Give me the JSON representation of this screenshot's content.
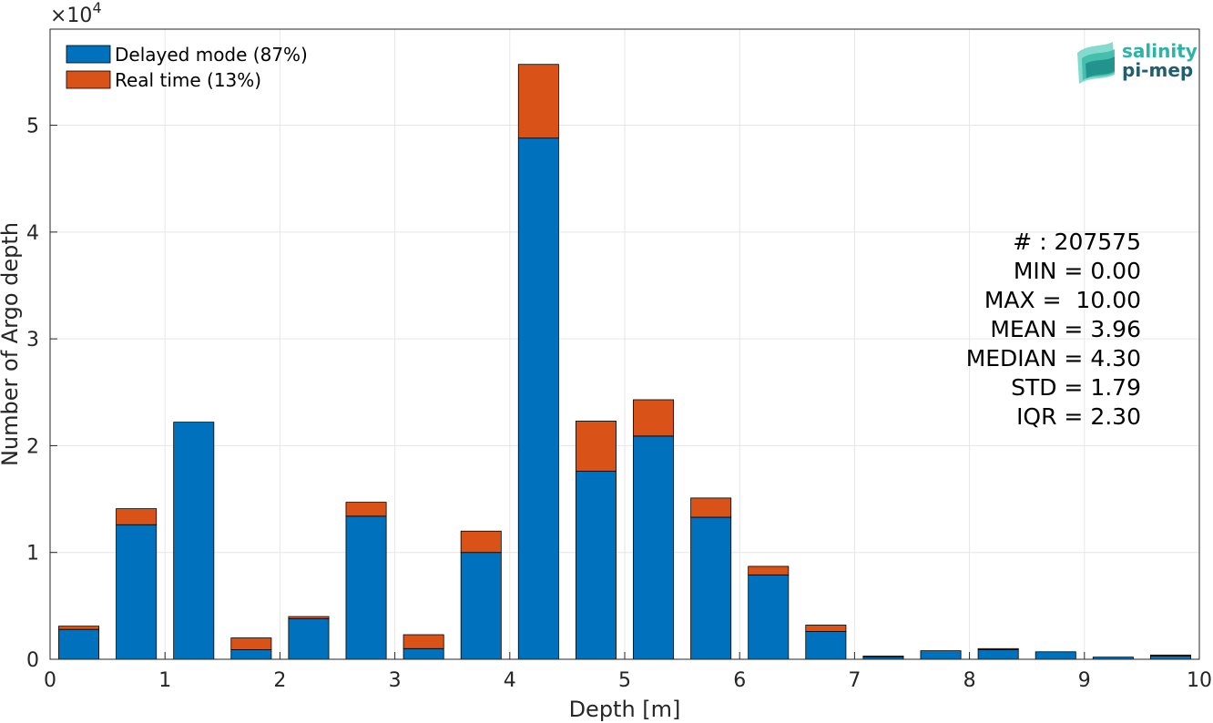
{
  "chart_data": {
    "type": "bar",
    "stacked": true,
    "xlabel": "Depth [m]",
    "ylabel": "Number of Argo depth",
    "y_exponent_label": "×10",
    "y_exponent_power": "4",
    "xlim": [
      0,
      10
    ],
    "ylim": [
      0,
      5.9
    ],
    "x_ticks": [
      0,
      1,
      2,
      3,
      4,
      5,
      6,
      7,
      8,
      9,
      10
    ],
    "y_ticks": [
      0,
      1,
      2,
      3,
      4,
      5
    ],
    "grid": true,
    "legend_position": "top-left",
    "x": [
      0.25,
      0.75,
      1.25,
      1.75,
      2.25,
      2.75,
      3.25,
      3.75,
      4.25,
      4.75,
      5.25,
      5.75,
      6.25,
      6.75,
      7.25,
      7.75,
      8.25,
      8.75,
      9.25,
      9.75
    ],
    "bar_width": 0.35,
    "series": [
      {
        "name": "Delayed mode (87%)",
        "color": "#0072BD",
        "values": [
          0.28,
          1.26,
          2.22,
          0.09,
          0.38,
          1.34,
          0.1,
          1.0,
          4.88,
          1.76,
          2.09,
          1.33,
          0.79,
          0.26,
          0.02,
          0.08,
          0.09,
          0.07,
          0.02,
          0.03
        ]
      },
      {
        "name": "Real time (13%)",
        "color": "#D95319",
        "values": [
          0.03,
          0.15,
          0.0,
          0.11,
          0.02,
          0.13,
          0.13,
          0.2,
          0.69,
          0.47,
          0.34,
          0.18,
          0.08,
          0.06,
          0.01,
          0.0,
          0.01,
          0.0,
          0.0,
          0.01
        ]
      }
    ]
  },
  "stats": [
    "# : 207575",
    "MIN = 0.00",
    "MAX =  10.00",
    "MEAN = 3.96",
    "MEDIAN = 4.30",
    "STD = 1.79",
    "IQR = 2.30"
  ],
  "logo": {
    "line1": "salinity",
    "line2": "pi-mep",
    "color1": "#2ab3a6",
    "color2": "#1f5f6e"
  }
}
